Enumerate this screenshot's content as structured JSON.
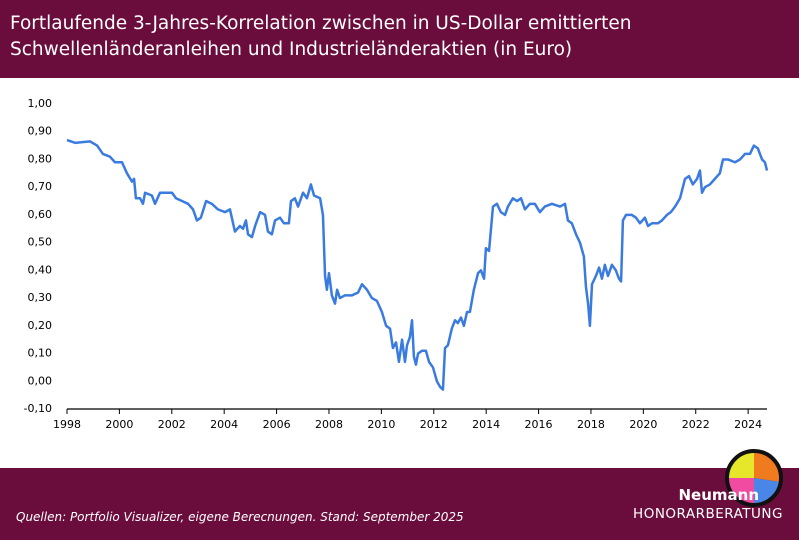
{
  "chart_data": {
    "type": "line",
    "title": "Fortlaufende 3-Jahres-Korrelation zwischen in US-Dollar emittierten Schwellenländeranleihen und Industrieländeraktien (in Euro)",
    "source": "Quellen: Portfolio Visualizer, eigene Berecnungen. Stand: September 2025",
    "color": "#3a7be0",
    "x": [
      1998.0,
      1998.31,
      1998.88,
      1999.15,
      1999.37,
      1999.64,
      1999.83,
      2000.1,
      2000.29,
      2000.48,
      2000.56,
      2000.63,
      2000.79,
      2000.9,
      2000.98,
      2001.24,
      2001.36,
      2001.55,
      2001.85,
      2002.01,
      2002.16,
      2002.39,
      2002.62,
      2002.81,
      2002.96,
      2003.11,
      2003.31,
      2003.53,
      2003.76,
      2004.03,
      2004.22,
      2004.41,
      2004.6,
      2004.72,
      2004.83,
      2004.91,
      2005.06,
      2005.18,
      2005.37,
      2005.56,
      2005.67,
      2005.82,
      2005.94,
      2006.13,
      2006.28,
      2006.47,
      2006.55,
      2006.7,
      2006.82,
      2007.01,
      2007.16,
      2007.31,
      2007.43,
      2007.66,
      2007.77,
      2007.85,
      2007.92,
      2008.0,
      2008.11,
      2008.23,
      2008.31,
      2008.42,
      2008.61,
      2008.88,
      2009.11,
      2009.26,
      2009.45,
      2009.64,
      2009.83,
      2010.02,
      2010.18,
      2010.33,
      2010.44,
      2010.56,
      2010.67,
      2010.79,
      2010.9,
      2010.98,
      2011.09,
      2011.17,
      2011.24,
      2011.32,
      2011.4,
      2011.55,
      2011.7,
      2011.82,
      2011.97,
      2012.12,
      2012.24,
      2012.35,
      2012.43,
      2012.54,
      2012.69,
      2012.81,
      2012.92,
      2013.04,
      2013.15,
      2013.27,
      2013.38,
      2013.53,
      2013.69,
      2013.8,
      2013.92,
      2013.99,
      2014.11,
      2014.26,
      2014.41,
      2014.56,
      2014.72,
      2014.83,
      2015.02,
      2015.18,
      2015.33,
      2015.48,
      2015.67,
      2015.86,
      2016.05,
      2016.24,
      2016.51,
      2016.82,
      2017.01,
      2017.12,
      2017.27,
      2017.43,
      2017.58,
      2017.73,
      2017.81,
      2017.89,
      2017.96,
      2018.04,
      2018.19,
      2018.31,
      2018.42,
      2018.53,
      2018.65,
      2018.8,
      2018.95,
      2019.07,
      2019.15,
      2019.22,
      2019.34,
      2019.56,
      2019.72,
      2019.87,
      2020.06,
      2020.18,
      2020.33,
      2020.56,
      2020.71,
      2020.9,
      2021.05,
      2021.21,
      2021.4,
      2021.59,
      2021.74,
      2021.89,
      2022.05,
      2022.16,
      2022.24,
      2022.35,
      2022.54,
      2022.73,
      2022.92,
      2023.04,
      2023.23,
      2023.5,
      2023.69,
      2023.88,
      2024.07,
      2024.22,
      2024.37,
      2024.53,
      2024.64,
      2024.72
    ],
    "values": [
      0.87,
      0.86,
      0.865,
      0.85,
      0.82,
      0.81,
      0.79,
      0.79,
      0.75,
      0.72,
      0.73,
      0.66,
      0.66,
      0.64,
      0.68,
      0.67,
      0.64,
      0.68,
      0.68,
      0.68,
      0.66,
      0.65,
      0.64,
      0.62,
      0.58,
      0.59,
      0.65,
      0.64,
      0.62,
      0.61,
      0.62,
      0.54,
      0.56,
      0.55,
      0.58,
      0.53,
      0.52,
      0.56,
      0.61,
      0.6,
      0.54,
      0.53,
      0.58,
      0.59,
      0.57,
      0.57,
      0.65,
      0.66,
      0.63,
      0.68,
      0.66,
      0.71,
      0.67,
      0.66,
      0.6,
      0.38,
      0.33,
      0.39,
      0.31,
      0.28,
      0.33,
      0.3,
      0.31,
      0.31,
      0.32,
      0.35,
      0.33,
      0.3,
      0.29,
      0.25,
      0.2,
      0.19,
      0.12,
      0.14,
      0.07,
      0.15,
      0.07,
      0.13,
      0.16,
      0.22,
      0.09,
      0.06,
      0.1,
      0.11,
      0.11,
      0.07,
      0.05,
      0.0,
      -0.02,
      -0.03,
      0.12,
      0.13,
      0.19,
      0.22,
      0.21,
      0.23,
      0.2,
      0.25,
      0.25,
      0.33,
      0.39,
      0.4,
      0.37,
      0.48,
      0.47,
      0.63,
      0.64,
      0.61,
      0.6,
      0.63,
      0.66,
      0.65,
      0.66,
      0.62,
      0.64,
      0.64,
      0.61,
      0.63,
      0.64,
      0.63,
      0.64,
      0.58,
      0.57,
      0.53,
      0.5,
      0.45,
      0.34,
      0.28,
      0.2,
      0.35,
      0.38,
      0.41,
      0.37,
      0.42,
      0.38,
      0.42,
      0.4,
      0.37,
      0.36,
      0.58,
      0.6,
      0.6,
      0.59,
      0.57,
      0.59,
      0.56,
      0.57,
      0.57,
      0.58,
      0.6,
      0.61,
      0.63,
      0.66,
      0.73,
      0.74,
      0.71,
      0.73,
      0.76,
      0.68,
      0.7,
      0.71,
      0.73,
      0.75,
      0.8,
      0.8,
      0.79,
      0.8,
      0.82,
      0.82,
      0.85,
      0.84,
      0.8,
      0.79,
      0.76
    ],
    "xlim": [
      1998,
      2024.72
    ],
    "xticks": [
      1998,
      2000,
      2002,
      2004,
      2006,
      2008,
      2010,
      2012,
      2014,
      2016,
      2018,
      2020,
      2022,
      2024
    ],
    "ylim": [
      -0.1,
      1.0
    ],
    "yticks": [
      {
        "value": -0.1,
        "label": "-0,10"
      },
      {
        "value": 0,
        "label": "0,00"
      },
      {
        "value": 0.1,
        "label": "0,10"
      },
      {
        "value": 0.2,
        "label": "0,20"
      },
      {
        "value": 0.3,
        "label": "0,30"
      },
      {
        "value": 0.4,
        "label": "0,40"
      },
      {
        "value": 0.5,
        "label": "0,50"
      },
      {
        "value": 0.6,
        "label": "0,60"
      },
      {
        "value": 0.7,
        "label": "0,70"
      },
      {
        "value": 0.8,
        "label": "0,80"
      },
      {
        "value": 0.9,
        "label": "0,90"
      },
      {
        "value": 1.0,
        "label": "1,00"
      }
    ],
    "grid": false
  },
  "brand": {
    "name": "Neumann",
    "tagline": "HONORARBERATUNG"
  }
}
